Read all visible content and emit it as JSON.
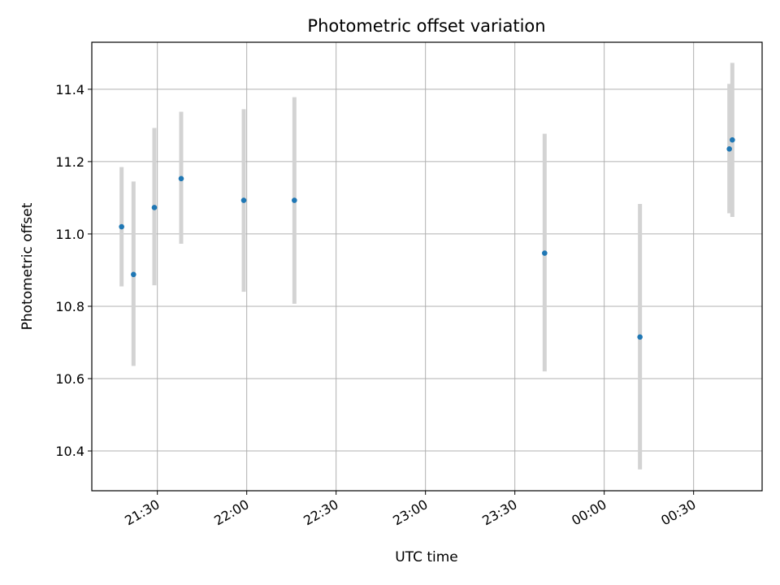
{
  "chart_data": {
    "type": "scatter",
    "title": "Photometric offset variation",
    "xlabel": "UTC time",
    "ylabel": "Photometric offset",
    "x_axis_type": "time",
    "xlim": [
      "21:08",
      "00:53"
    ],
    "ylim": [
      10.29,
      11.53
    ],
    "x_ticks": [
      "21:30",
      "22:00",
      "22:30",
      "23:00",
      "23:30",
      "00:00",
      "00:30"
    ],
    "y_ticks": [
      "10.4",
      "10.6",
      "10.8",
      "11.0",
      "11.2",
      "11.4"
    ],
    "grid": true,
    "legend": "none",
    "marker_color": "#1f77b4",
    "errorbar_color": "#d3d3d3",
    "points": [
      {
        "time": "21:18",
        "y": 11.02,
        "err_low": 10.855,
        "err_high": 11.185
      },
      {
        "time": "21:22",
        "y": 10.888,
        "err_low": 10.635,
        "err_high": 11.145
      },
      {
        "time": "21:29",
        "y": 11.073,
        "err_low": 10.858,
        "err_high": 11.293
      },
      {
        "time": "21:38",
        "y": 11.153,
        "err_low": 10.973,
        "err_high": 11.338
      },
      {
        "time": "21:59",
        "y": 11.093,
        "err_low": 10.84,
        "err_high": 11.345
      },
      {
        "time": "22:16",
        "y": 11.093,
        "err_low": 10.807,
        "err_high": 11.378
      },
      {
        "time": "23:40",
        "y": 10.947,
        "err_low": 10.62,
        "err_high": 11.277
      },
      {
        "time": "00:12",
        "y": 10.715,
        "err_low": 10.349,
        "err_high": 11.083
      },
      {
        "time": "00:42",
        "y": 11.235,
        "err_low": 11.057,
        "err_high": 11.415
      },
      {
        "time": "00:43",
        "y": 11.26,
        "err_low": 11.047,
        "err_high": 11.473
      }
    ]
  }
}
